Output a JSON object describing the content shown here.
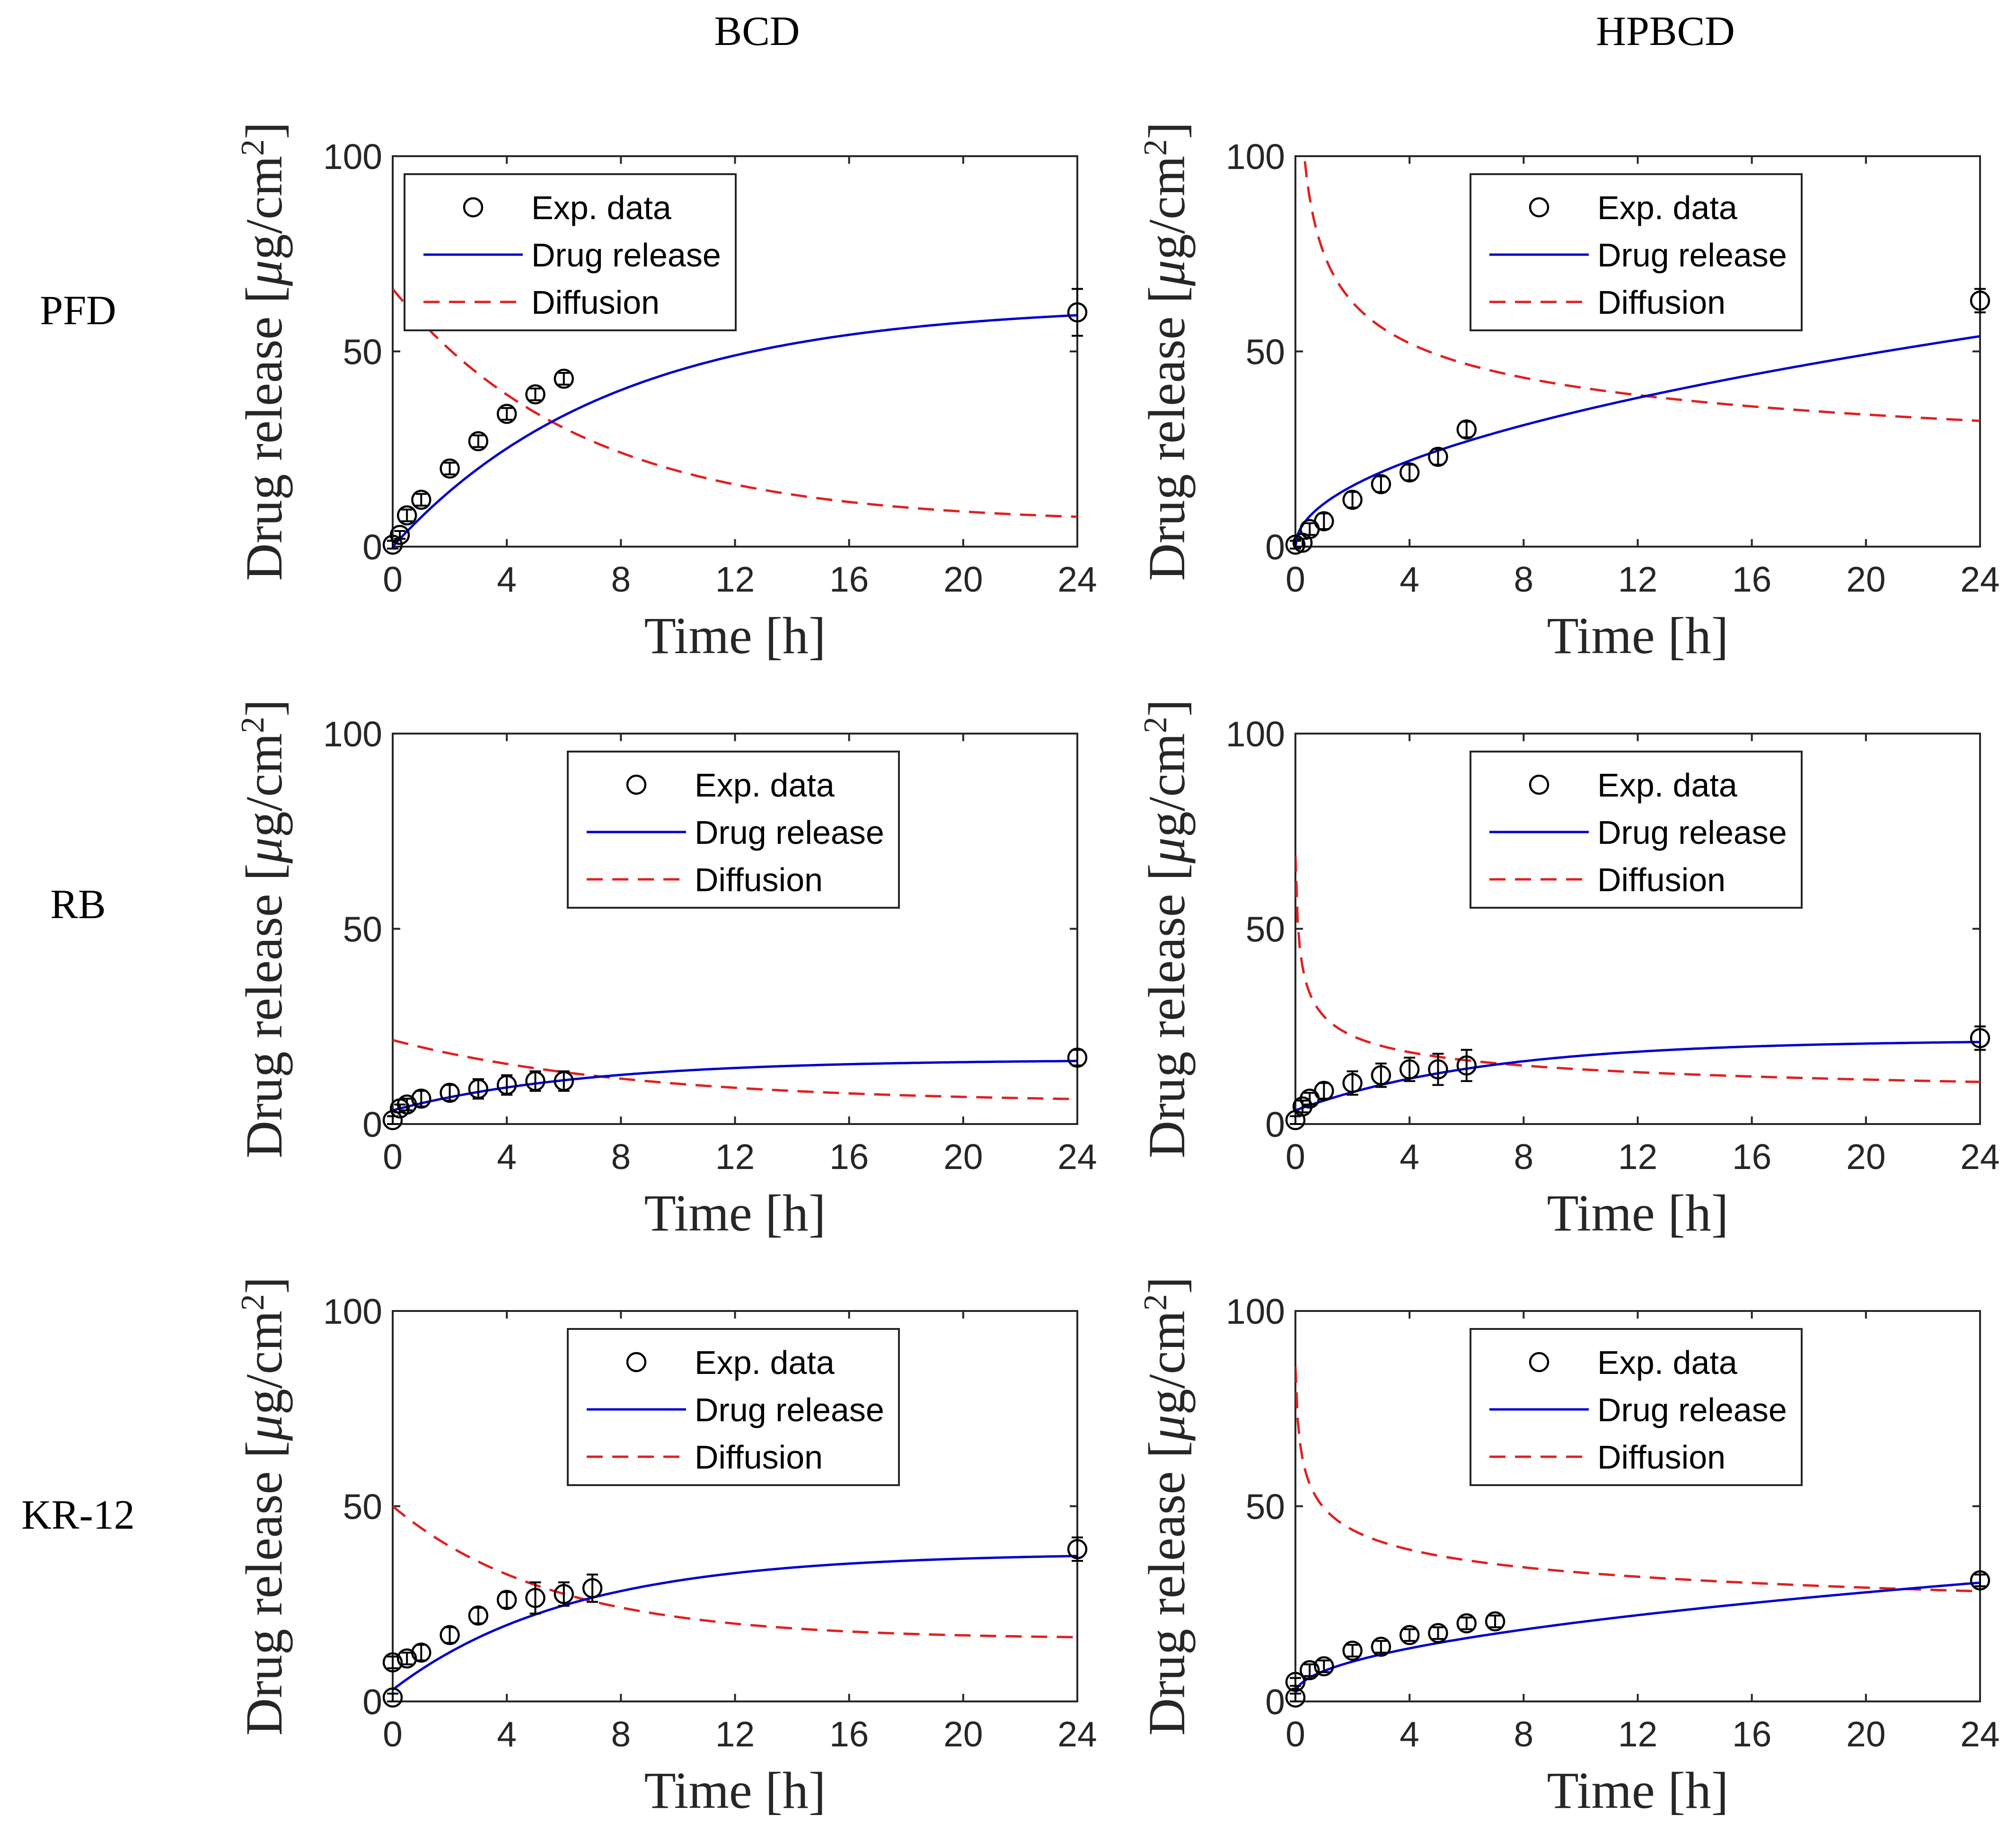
{
  "figure": {
    "column_headers": [
      "BCD",
      "HPBCD"
    ],
    "row_headers": [
      "PFD",
      "RB",
      "KR-12"
    ]
  },
  "axes_common": {
    "xlabel": "Time [h]",
    "ylabel_text": "Drug release ",
    "ylabel_unit_open": "[",
    "ylabel_mu": "μ",
    "ylabel_unit_mid": "g/cm",
    "ylabel_sup": "2",
    "ylabel_unit_close": "]",
    "xlim": [
      0,
      24
    ],
    "ylim": [
      0,
      100
    ],
    "xticks": [
      0,
      4,
      8,
      12,
      16,
      20,
      24
    ],
    "yticks": [
      0,
      50,
      100
    ]
  },
  "legend": {
    "exp": "Exp. data",
    "release": "Drug release",
    "diffusion": "Diffusion"
  },
  "colors": {
    "release": "#0000cc",
    "diffusion": "#e02020",
    "markers": "#000000",
    "axes": "#262626"
  },
  "chart_data": [
    {
      "type": "line",
      "row": "PFD",
      "column": "BCD",
      "legend_position": "top-left",
      "exp": {
        "x": [
          0,
          0.25,
          0.5,
          1,
          2,
          3,
          4,
          5,
          6,
          24
        ],
        "y": [
          0.5,
          3,
          8,
          12,
          20,
          27,
          34,
          39,
          43,
          60
        ],
        "err": [
          1,
          1,
          1.5,
          1.5,
          1.5,
          1.5,
          1.5,
          1.5,
          1.5,
          6
        ]
      },
      "release": {
        "type": "exp",
        "a": 62,
        "k": 0.13,
        "c": 0
      },
      "diffusion": {
        "type": "exp",
        "a": 60,
        "k": 0.15,
        "c": 6
      }
    },
    {
      "type": "line",
      "row": "PFD",
      "column": "HPBCD",
      "legend_position": "top-right",
      "exp": {
        "x": [
          0,
          0.25,
          0.5,
          1,
          2,
          3,
          4,
          5,
          6,
          24
        ],
        "y": [
          0.5,
          1,
          4.5,
          6.5,
          12,
          16,
          19,
          23,
          30,
          63
        ],
        "err": [
          1,
          1,
          1.5,
          2,
          2,
          2,
          2,
          2,
          2,
          3
        ]
      },
      "release": {
        "type": "sqrt",
        "a": 0,
        "b": 11
      },
      "diffusion": {
        "type": "power",
        "a": 76,
        "b": -0.27,
        "t0": 0.05
      }
    },
    {
      "type": "line",
      "row": "RB",
      "column": "BCD",
      "legend_position": "top-center",
      "exp": {
        "x": [
          0,
          0.25,
          0.5,
          1,
          2,
          3,
          4,
          5,
          6,
          24
        ],
        "y": [
          1,
          4,
          5,
          6.5,
          8,
          9,
          10,
          11,
          11,
          17
        ],
        "err": [
          1,
          1,
          1.5,
          2,
          2,
          2.5,
          2.5,
          2.5,
          2.5,
          2
        ]
      },
      "release": {
        "type": "exp",
        "a": 13,
        "k": 0.15,
        "c": 3.5
      },
      "diffusion": {
        "type": "exp",
        "a": 16,
        "k": 0.12,
        "c": 5.5
      }
    },
    {
      "type": "line",
      "row": "RB",
      "column": "HPBCD",
      "legend_position": "top-right",
      "exp": {
        "x": [
          0,
          0.25,
          0.5,
          1,
          2,
          3,
          4,
          5,
          6,
          24
        ],
        "y": [
          1,
          4.5,
          6.5,
          8.5,
          10.5,
          12.5,
          14,
          14,
          15,
          22
        ],
        "err": [
          1,
          1.5,
          1.5,
          2,
          3,
          3,
          3,
          4,
          4,
          3
        ]
      },
      "release": {
        "type": "exp",
        "a": 18,
        "k": 0.15,
        "c": 3.5
      },
      "diffusion": {
        "type": "power",
        "a": 28,
        "b": -0.3,
        "t0": 0.05,
        "floor": 9
      }
    },
    {
      "type": "line",
      "row": "KR-12",
      "column": "BCD",
      "legend_position": "top-center",
      "exp": {
        "x": [
          0,
          0,
          0.5,
          1,
          2,
          3,
          4,
          5,
          6,
          7,
          24
        ],
        "y": [
          1,
          10,
          11,
          12.5,
          17,
          22,
          26,
          26.5,
          27.5,
          29,
          39
        ],
        "err": [
          1,
          1.5,
          1.5,
          2,
          2,
          2,
          2,
          4,
          3,
          3.5,
          3
        ]
      },
      "release": {
        "type": "exp",
        "a": 35,
        "k": 0.16,
        "c": 3
      },
      "diffusion": {
        "type": "exp",
        "a": 34,
        "k": 0.18,
        "c": 16
      }
    },
    {
      "type": "line",
      "row": "KR-12",
      "column": "HPBCD",
      "legend_position": "top-right",
      "exp": {
        "x": [
          0,
          0,
          0.5,
          1,
          2,
          3,
          4,
          5,
          6,
          7,
          24
        ],
        "y": [
          1,
          5,
          8,
          9,
          13,
          14,
          17,
          17.5,
          20,
          20.5,
          31
        ],
        "err": [
          1,
          1,
          1.5,
          1.5,
          1.5,
          1.5,
          1.5,
          1.5,
          1.5,
          1.5,
          1.5
        ]
      },
      "release": {
        "type": "sqrt",
        "a": 2,
        "b": 5.8
      },
      "diffusion": {
        "type": "power",
        "a": 50,
        "b": -0.18,
        "t0": 0.05,
        "floor": 10
      }
    }
  ]
}
